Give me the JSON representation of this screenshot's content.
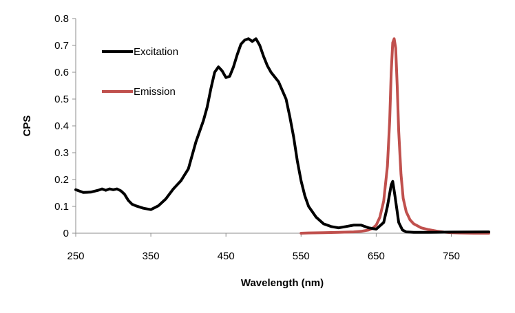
{
  "chart_data": {
    "type": "line",
    "title": "",
    "xlabel": "Wavelength (nm)",
    "ylabel": "CPS",
    "xlim": [
      250,
      800
    ],
    "ylim": [
      0,
      0.8
    ],
    "xticks": [
      "250",
      "350",
      "450",
      "550",
      "650",
      "750"
    ],
    "xtick_values": [
      250,
      350,
      450,
      550,
      650,
      750
    ],
    "yticks": [
      "0",
      "0.1",
      "0.2",
      "0.3",
      "0.4",
      "0.5",
      "0.6",
      "0.7",
      "0.8"
    ],
    "ytick_values": [
      0,
      0.1,
      0.2,
      0.3,
      0.4,
      0.5,
      0.6,
      0.7,
      0.8
    ],
    "grid": false,
    "legend_position": "top-left",
    "series": [
      {
        "name": "Excitation",
        "color": "#000000",
        "x": [
          250,
          260,
          270,
          280,
          285,
          290,
          295,
          300,
          305,
          310,
          315,
          320,
          325,
          330,
          340,
          350,
          360,
          370,
          380,
          390,
          400,
          410,
          420,
          425,
          430,
          435,
          440,
          445,
          450,
          455,
          460,
          465,
          470,
          475,
          480,
          485,
          490,
          495,
          500,
          505,
          510,
          520,
          530,
          535,
          540,
          545,
          550,
          555,
          560,
          570,
          580,
          590,
          600,
          610,
          620,
          630,
          640,
          650,
          660,
          665,
          670,
          672,
          675,
          680,
          685,
          690,
          700,
          720,
          750,
          800
        ],
        "y": [
          0.162,
          0.152,
          0.153,
          0.16,
          0.165,
          0.16,
          0.165,
          0.162,
          0.165,
          0.158,
          0.145,
          0.122,
          0.108,
          0.102,
          0.093,
          0.088,
          0.102,
          0.128,
          0.165,
          0.195,
          0.24,
          0.34,
          0.42,
          0.47,
          0.54,
          0.6,
          0.62,
          0.605,
          0.58,
          0.585,
          0.62,
          0.665,
          0.705,
          0.72,
          0.725,
          0.715,
          0.725,
          0.7,
          0.66,
          0.625,
          0.6,
          0.565,
          0.5,
          0.435,
          0.36,
          0.27,
          0.195,
          0.14,
          0.1,
          0.06,
          0.035,
          0.025,
          0.02,
          0.025,
          0.03,
          0.03,
          0.02,
          0.015,
          0.04,
          0.1,
          0.18,
          0.193,
          0.14,
          0.04,
          0.012,
          0.005,
          0.003,
          0.003,
          0.004,
          0.005
        ]
      },
      {
        "name": "Emission",
        "color": "#c0504d",
        "x": [
          550,
          560,
          580,
          600,
          620,
          630,
          640,
          645,
          650,
          655,
          660,
          665,
          668,
          670,
          672,
          674,
          676,
          678,
          680,
          683,
          686,
          690,
          695,
          700,
          710,
          720,
          730,
          740,
          750,
          760,
          780,
          800
        ],
        "y": [
          0.0,
          0.001,
          0.002,
          0.003,
          0.005,
          0.007,
          0.012,
          0.018,
          0.03,
          0.06,
          0.12,
          0.25,
          0.42,
          0.6,
          0.71,
          0.725,
          0.69,
          0.55,
          0.38,
          0.22,
          0.13,
          0.08,
          0.05,
          0.035,
          0.02,
          0.013,
          0.008,
          0.004,
          0.002,
          0.001,
          0.0,
          0.0
        ]
      }
    ]
  }
}
